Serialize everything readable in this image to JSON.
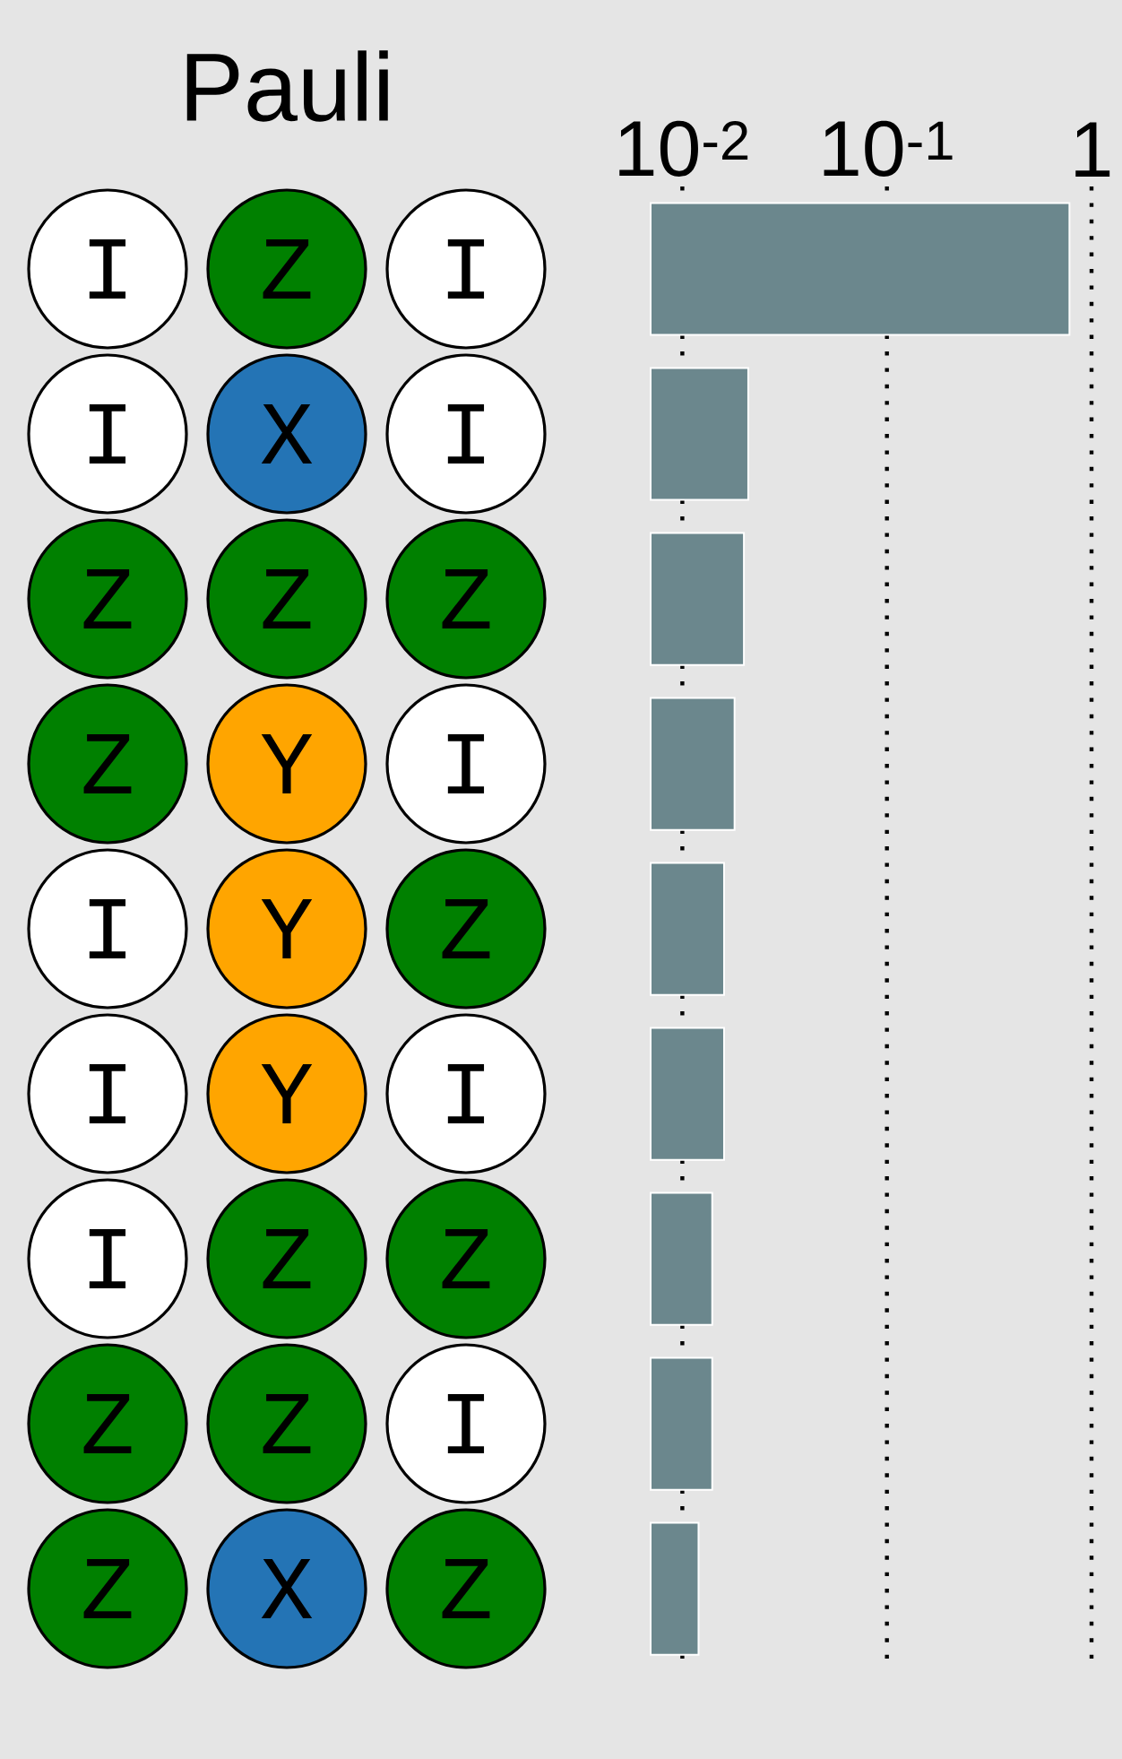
{
  "chart_data": {
    "type": "bar",
    "orientation": "horizontal",
    "log": "x",
    "grid": "x",
    "ylabel": "Pauli",
    "categories": [
      "I Z I",
      "I X I",
      "Z Z Z",
      "Z Y I",
      "I Y Z",
      "I Y I",
      "I Z Z",
      "Z Z I",
      "Z X Z"
    ],
    "values": [
      0.78,
      0.021,
      0.02,
      0.018,
      0.016,
      0.016,
      0.014,
      0.014,
      0.012
    ],
    "color": "#6b878d",
    "xlim": [
      0.007,
      1
    ],
    "xticks": [
      {
        "value": 0.01,
        "label": "10$^{-2}$"
      },
      {
        "value": 0.1,
        "label": "10$^{-1}$"
      },
      1
    ]
  }
}
